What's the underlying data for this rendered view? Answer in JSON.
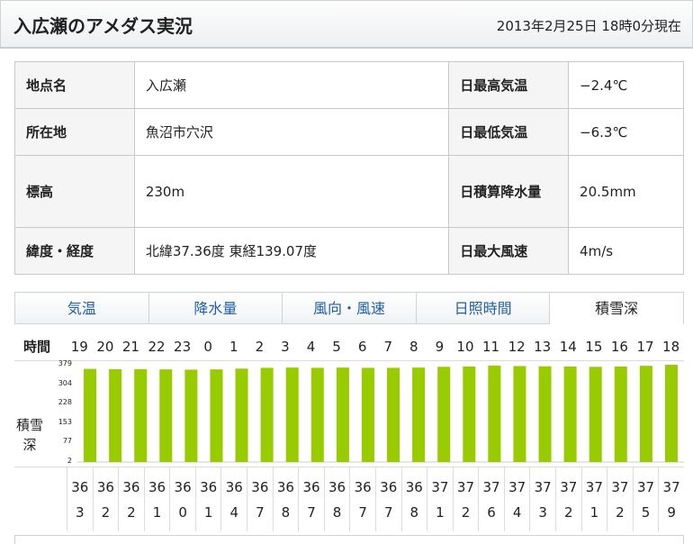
{
  "header": {
    "title": "入広瀬のアメダス実況",
    "time": "2013年2月25日 18時0分現在"
  },
  "info": [
    {
      "label1": "地点名",
      "value1": "入広瀬",
      "label2": "日最高気温",
      "value2": "−2.4℃"
    },
    {
      "label1": "所在地",
      "value1": "魚沼市穴沢",
      "label2": "日最低気温",
      "value2": "−6.3℃"
    },
    {
      "label1": "標高",
      "value1": "230m",
      "label2": "日積算降水量",
      "value2": "20.5mm"
    },
    {
      "label1": "緯度・経度",
      "value1": "北緯37.36度 東経139.07度",
      "label2": "日最大風速",
      "value2": "4m/s"
    }
  ],
  "tabs": [
    "気温",
    "降水量",
    "風向・風速",
    "日照時間",
    "積雪深"
  ],
  "active_tab": "積雪深",
  "hours_label": "時間",
  "chart_ylabel": "積雪深",
  "chart_data": {
    "type": "bar",
    "categories": [
      "19",
      "20",
      "21",
      "22",
      "23",
      "0",
      "1",
      "2",
      "3",
      "4",
      "5",
      "6",
      "7",
      "8",
      "9",
      "10",
      "11",
      "12",
      "13",
      "14",
      "15",
      "16",
      "17",
      "18"
    ],
    "values": [
      363,
      362,
      362,
      361,
      360,
      361,
      364,
      367,
      368,
      367,
      368,
      367,
      367,
      368,
      371,
      372,
      376,
      374,
      373,
      372,
      371,
      372,
      375,
      379
    ],
    "yticks": [
      "2",
      "77",
      "153",
      "228",
      "304",
      "379"
    ],
    "ylim": [
      0,
      379
    ],
    "color": "#99cc00"
  },
  "value_labels": [
    "36\n3",
    "36\n2",
    "36\n2",
    "36\n1",
    "36\n0",
    "36\n1",
    "36\n4",
    "36\n7",
    "36\n8",
    "36\n7",
    "36\n8",
    "36\n7",
    "36\n7",
    "36\n8",
    "37\n1",
    "37\n2",
    "37\n6",
    "37\n4",
    "37\n3",
    "37\n2",
    "37\n1",
    "37\n2",
    "37\n5",
    "37\n9"
  ]
}
